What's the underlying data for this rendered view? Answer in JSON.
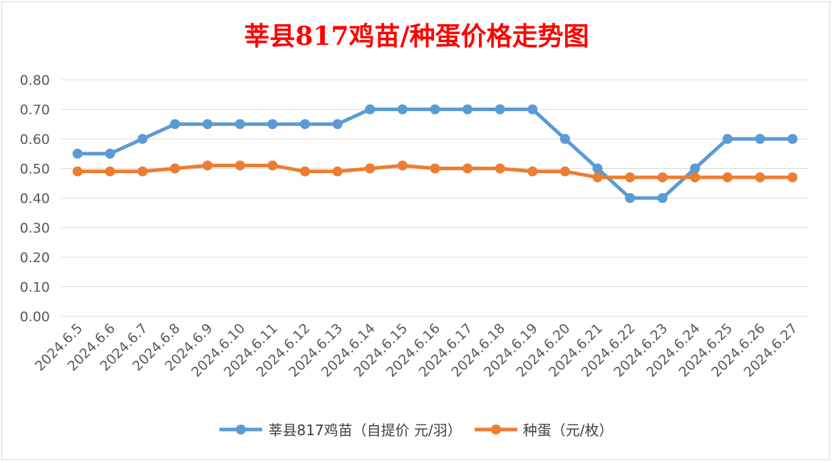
{
  "chart_data": {
    "type": "line",
    "title": "莘县817鸡苗/种蛋价格走势图",
    "categories": [
      "2024.6.5",
      "2024.6.6",
      "2024.6.7",
      "2024.6.8",
      "2024.6.9",
      "2024.6.10",
      "2024.6.11",
      "2024.6.12",
      "2024.6.13",
      "2024.6.14",
      "2024.6.15",
      "2024.6.16",
      "2024.6.17",
      "2024.6.18",
      "2024.6.19",
      "2024.6.20",
      "2024.6.21",
      "2024.6.22",
      "2024.6.23",
      "2024.6.24",
      "2024.6.25",
      "2024.6.26",
      "2024.6.27"
    ],
    "series": [
      {
        "name": "莘县817鸡苗（自提价 元/羽）",
        "color": "#5b9bd5",
        "values": [
          0.55,
          0.55,
          0.6,
          0.65,
          0.65,
          0.65,
          0.65,
          0.65,
          0.65,
          0.7,
          0.7,
          0.7,
          0.7,
          0.7,
          0.7,
          0.6,
          0.5,
          0.4,
          0.4,
          0.5,
          0.6,
          0.6,
          0.6
        ]
      },
      {
        "name": "种蛋（元/枚）",
        "color": "#ed7d31",
        "values": [
          0.49,
          0.49,
          0.49,
          0.5,
          0.51,
          0.51,
          0.51,
          0.49,
          0.49,
          0.5,
          0.51,
          0.5,
          0.5,
          0.5,
          0.49,
          0.49,
          0.47,
          0.47,
          0.47,
          0.47,
          0.47,
          0.47,
          0.47
        ]
      }
    ],
    "yticks": [
      "0.00",
      "0.10",
      "0.20",
      "0.30",
      "0.40",
      "0.50",
      "0.60",
      "0.70",
      "0.80"
    ],
    "ylim": [
      0,
      0.8
    ],
    "grid": true,
    "legend_position": "bottom"
  }
}
